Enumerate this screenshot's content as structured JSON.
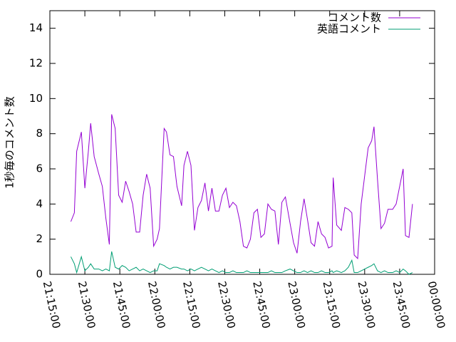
{
  "chart_data": {
    "type": "line",
    "y_label": "1秒毎のコメント数",
    "x": [
      "21:24:00",
      "21:25:30",
      "21:26:30",
      "21:28:30",
      "21:30:00",
      "21:31:30",
      "21:32:30",
      "21:34:00",
      "21:36:00",
      "21:37:30",
      "21:39:00",
      "21:40:30",
      "21:41:30",
      "21:43:00",
      "21:44:30",
      "21:46:00",
      "21:47:30",
      "21:49:00",
      "21:50:30",
      "21:52:00",
      "21:53:30",
      "21:55:00",
      "21:56:30",
      "21:58:00",
      "21:59:30",
      "22:01:00",
      "22:02:00",
      "22:04:00",
      "22:05:00",
      "22:06:30",
      "22:08:00",
      "22:09:30",
      "22:11:30",
      "22:12:30",
      "22:14:00",
      "22:15:30",
      "22:17:00",
      "22:18:30",
      "22:20:00",
      "22:21:30",
      "22:23:00",
      "22:24:30",
      "22:26:00",
      "22:27:30",
      "22:29:00",
      "22:30:30",
      "22:32:00",
      "22:33:30",
      "22:35:00",
      "22:36:30",
      "22:38:00",
      "22:39:30",
      "22:41:00",
      "22:42:30",
      "22:44:00",
      "22:45:30",
      "22:47:00",
      "22:48:30",
      "22:50:00",
      "22:51:30",
      "22:53:00",
      "22:54:30",
      "22:56:00",
      "22:58:00",
      "22:59:30",
      "23:01:00",
      "23:02:30",
      "23:04:00",
      "23:05:30",
      "23:07:00",
      "23:08:30",
      "23:10:00",
      "23:11:30",
      "23:13:00",
      "23:14:30",
      "23:16:00",
      "23:16:30",
      "23:18:00",
      "23:20:00",
      "23:21:30",
      "23:23:00",
      "23:24:30",
      "23:25:30",
      "23:27:00",
      "23:28:30",
      "23:30:00",
      "23:31:30",
      "23:33:00",
      "23:34:00",
      "23:35:30",
      "23:37:00",
      "23:38:30",
      "23:40:00",
      "23:42:00",
      "23:43:30",
      "23:45:00",
      "23:46:30",
      "23:47:30",
      "23:49:00",
      "23:50:30"
    ],
    "series": [
      {
        "name": "コメント数",
        "color": "#9400d3",
        "values": [
          3.0,
          3.5,
          7.0,
          8.1,
          4.9,
          7.0,
          8.6,
          6.7,
          5.7,
          5.0,
          3.2,
          1.7,
          9.1,
          8.3,
          4.5,
          4.1,
          5.3,
          4.7,
          4.0,
          2.4,
          2.4,
          4.5,
          5.7,
          4.9,
          1.6,
          2.0,
          2.6,
          8.3,
          8.1,
          6.8,
          6.7,
          5.0,
          3.9,
          6.2,
          7.0,
          6.2,
          2.5,
          3.8,
          4.2,
          5.2,
          3.6,
          4.9,
          3.6,
          3.6,
          4.5,
          4.9,
          3.8,
          4.1,
          3.9,
          3.0,
          1.6,
          1.5,
          2.0,
          3.5,
          3.7,
          2.1,
          2.3,
          4.0,
          3.7,
          3.6,
          1.7,
          4.1,
          4.4,
          2.9,
          1.8,
          1.2,
          3.0,
          4.3,
          3.1,
          1.8,
          1.6,
          3.0,
          2.3,
          2.1,
          1.5,
          1.6,
          5.5,
          2.8,
          2.5,
          3.8,
          3.7,
          3.5,
          1.1,
          0.9,
          4.0,
          5.6,
          7.2,
          7.6,
          8.4,
          5.4,
          2.6,
          2.9,
          3.7,
          3.7,
          4.0,
          5.0,
          6.0,
          2.2,
          2.1,
          4.0
        ]
      },
      {
        "name": "英語コメント",
        "color": "#009e73",
        "values": [
          1.0,
          0.6,
          0.1,
          1.0,
          0.2,
          0.4,
          0.6,
          0.3,
          0.3,
          0.2,
          0.3,
          0.2,
          1.3,
          0.4,
          0.3,
          0.5,
          0.4,
          0.2,
          0.3,
          0.4,
          0.2,
          0.3,
          0.2,
          0.1,
          0.2,
          0.2,
          0.6,
          0.5,
          0.4,
          0.3,
          0.4,
          0.4,
          0.3,
          0.3,
          0.2,
          0.3,
          0.2,
          0.3,
          0.4,
          0.3,
          0.2,
          0.3,
          0.2,
          0.1,
          0.2,
          0.1,
          0.1,
          0.2,
          0.1,
          0.1,
          0.1,
          0.2,
          0.1,
          0.1,
          0.1,
          0.1,
          0.1,
          0.1,
          0.2,
          0.1,
          0.1,
          0.1,
          0.2,
          0.3,
          0.2,
          0.1,
          0.1,
          0.2,
          0.1,
          0.2,
          0.1,
          0.1,
          0.2,
          0.1,
          0.1,
          0.2,
          0.1,
          0.2,
          0.1,
          0.2,
          0.4,
          0.8,
          0.1,
          0.1,
          0.2,
          0.3,
          0.4,
          0.5,
          0.6,
          0.2,
          0.1,
          0.2,
          0.1,
          0.1,
          0.2,
          0.1,
          0.3,
          0.2,
          0.0,
          0.1
        ]
      }
    ],
    "xlim": [
      "21:15:00",
      "00:00:00"
    ],
    "xticks": [
      "21:15:00",
      "21:30:00",
      "21:45:00",
      "22:00:00",
      "22:15:00",
      "22:30:00",
      "22:45:00",
      "23:00:00",
      "23:15:00",
      "23:30:00",
      "23:45:00",
      "00:00:00"
    ],
    "ylim": [
      0,
      15
    ],
    "yticks": [
      0,
      2,
      4,
      6,
      8,
      10,
      12,
      14
    ],
    "legend": "top-right"
  }
}
